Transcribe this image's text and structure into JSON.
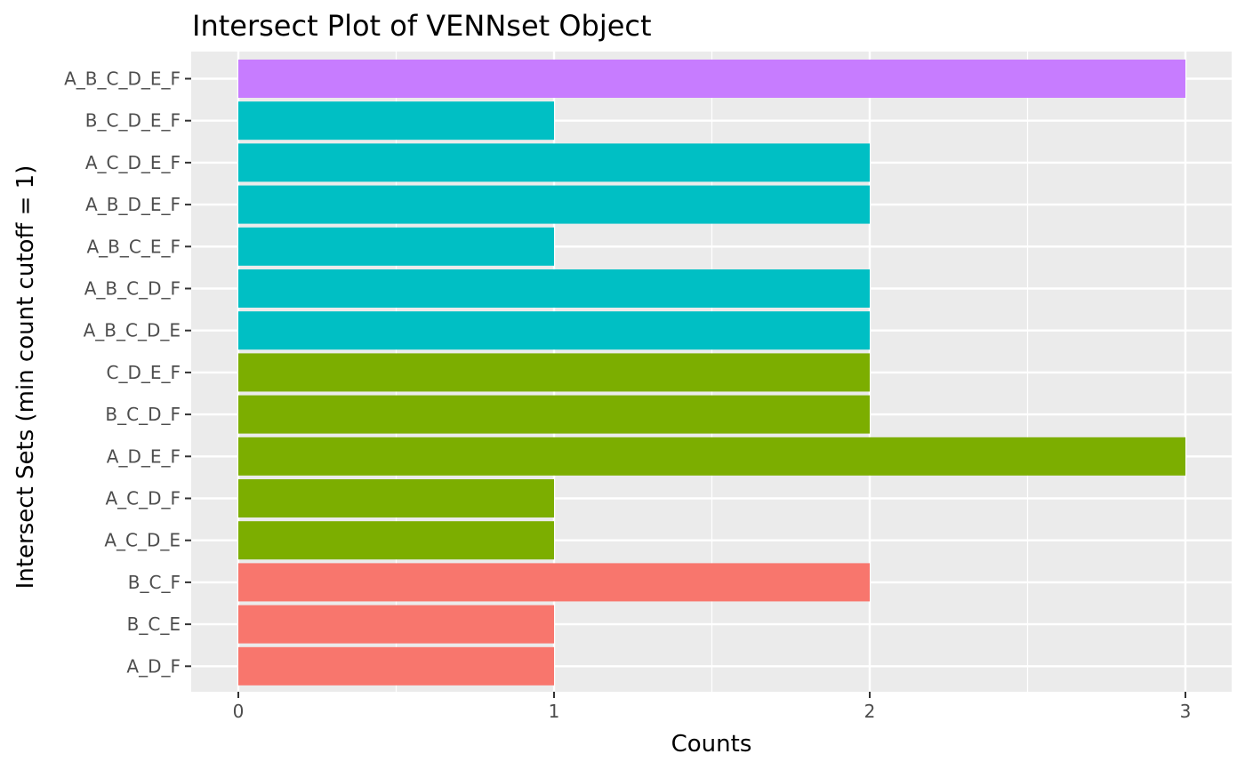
{
  "chart_data": {
    "type": "bar",
    "orientation": "horizontal",
    "title": "Intersect Plot of VENNset Object",
    "xlabel": "Counts",
    "ylabel": "Intersect Sets (min count cutoff = 1)",
    "xlim": [
      0,
      3
    ],
    "x_ticks": [
      "0",
      "1",
      "2",
      "3"
    ],
    "grid": true,
    "legend": "none",
    "categories": [
      "A_B_C_D_E_F",
      "B_C_D_E_F",
      "A_C_D_E_F",
      "A_B_D_E_F",
      "A_B_C_E_F",
      "A_B_C_D_F",
      "A_B_C_D_E",
      "C_D_E_F",
      "B_C_D_F",
      "A_D_E_F",
      "A_C_D_F",
      "A_C_D_E",
      "B_C_F",
      "B_C_E",
      "A_D_F"
    ],
    "values": [
      3,
      1,
      2,
      2,
      1,
      2,
      2,
      2,
      2,
      3,
      1,
      1,
      2,
      1,
      1
    ],
    "bar_colors": [
      "#C77CFF",
      "#00BFC4",
      "#00BFC4",
      "#00BFC4",
      "#00BFC4",
      "#00BFC4",
      "#00BFC4",
      "#7CAE00",
      "#7CAE00",
      "#7CAE00",
      "#7CAE00",
      "#7CAE00",
      "#F8766D",
      "#F8766D",
      "#F8766D"
    ],
    "panel_color": "#EBEBEB",
    "grid_color": "#FFFFFF"
  }
}
